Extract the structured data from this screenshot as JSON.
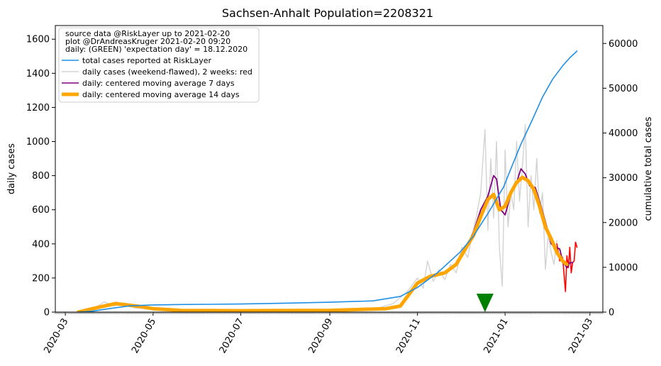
{
  "chart_data": {
    "type": "line",
    "title": "Sachsen-Anhalt Population=2208321",
    "ylabel_left": "daily cases",
    "ylabel_right": "cumulative total cases",
    "ylim_left": [
      0,
      1680
    ],
    "ylim_right": [
      0,
      64000
    ],
    "yticks_left": [
      0,
      200,
      400,
      600,
      800,
      1000,
      1200,
      1400,
      1600
    ],
    "yticks_right": [
      0,
      10000,
      20000,
      30000,
      40000,
      50000,
      60000
    ],
    "xlim": [
      "2020-02-23",
      "2021-03-10"
    ],
    "xtick_labels": [
      "2020-03",
      "2020-05",
      "2020-07",
      "2020-09",
      "2020-11",
      "2021-01",
      "2021-03"
    ],
    "xtick_dates": [
      "2020-03-01",
      "2020-05-01",
      "2020-07-01",
      "2020-09-01",
      "2020-11-01",
      "2021-01-01",
      "2021-03-01"
    ],
    "legend": {
      "placement": "upper-left",
      "header_lines": [
        "source data @RiskLayer up to 2021-02-20",
        "plot @DrAndreasKruger 2021-02-20 09:20",
        "daily: (GREEN) 'expectation day' = 18.12.2020"
      ],
      "entries": [
        "total cases reported at RiskLayer",
        "daily cases (weekend-flawed), 2 weeks: red",
        "daily: centered moving average 7 days",
        "daily: centered moving average 14 days"
      ]
    },
    "colors": {
      "total": "#1f8fe6",
      "daily": "#d3d3d3",
      "daily_recent": "#ff0000",
      "ma7": "#800080",
      "ma14": "#ffa500",
      "marker": "#008000",
      "ylabel_left": "#800080",
      "ylabel_right": "#1f8fe6"
    },
    "marker": {
      "date": "2020-12-18",
      "value": 50
    },
    "series": [
      {
        "name": "total cases reported at RiskLayer",
        "axis": "right",
        "x": [
          "2020-03-10",
          "2020-03-20",
          "2020-04-01",
          "2020-04-15",
          "2020-05-01",
          "2020-05-20",
          "2020-06-10",
          "2020-07-01",
          "2020-08-01",
          "2020-09-01",
          "2020-10-01",
          "2020-10-20",
          "2020-11-01",
          "2020-11-15",
          "2020-12-01",
          "2020-12-10",
          "2020-12-20",
          "2020-12-31",
          "2021-01-05",
          "2021-01-12",
          "2021-01-20",
          "2021-01-27",
          "2021-02-03",
          "2021-02-10",
          "2021-02-15",
          "2021-02-20"
        ],
        "y": [
          0,
          200,
          800,
          1400,
          1600,
          1700,
          1750,
          1800,
          2000,
          2200,
          2500,
          3500,
          5500,
          8800,
          13500,
          17000,
          22000,
          28000,
          32000,
          37500,
          43000,
          48000,
          52000,
          55000,
          56800,
          58300
        ]
      },
      {
        "name": "daily cases (weekend-flawed), 2 weeks: red",
        "axis": "left",
        "x": [
          "2020-03-10",
          "2020-03-20",
          "2020-03-28",
          "2020-04-04",
          "2020-04-10",
          "2020-04-18",
          "2020-04-28",
          "2020-05-10",
          "2020-06-01",
          "2020-06-20",
          "2020-07-01",
          "2020-08-01",
          "2020-09-01",
          "2020-09-20",
          "2020-10-05",
          "2020-10-15",
          "2020-10-25",
          "2020-11-01",
          "2020-11-05",
          "2020-11-08",
          "2020-11-12",
          "2020-11-16",
          "2020-11-20",
          "2020-11-24",
          "2020-11-28",
          "2020-12-02",
          "2020-12-06",
          "2020-12-09",
          "2020-12-12",
          "2020-12-15",
          "2020-12-18",
          "2020-12-20",
          "2020-12-22",
          "2020-12-24",
          "2020-12-26",
          "2020-12-28",
          "2020-12-30",
          "2021-01-01",
          "2021-01-03",
          "2021-01-05",
          "2021-01-07",
          "2021-01-09",
          "2021-01-11",
          "2021-01-13",
          "2021-01-15",
          "2021-01-17",
          "2021-01-19",
          "2021-01-21",
          "2021-01-23",
          "2021-01-25",
          "2021-01-27",
          "2021-01-29",
          "2021-01-31",
          "2021-02-02",
          "2021-02-04",
          "2021-02-06"
        ],
        "y": [
          0,
          15,
          60,
          35,
          50,
          25,
          20,
          10,
          5,
          8,
          10,
          12,
          10,
          20,
          25,
          50,
          120,
          200,
          140,
          300,
          180,
          250,
          190,
          280,
          230,
          380,
          320,
          450,
          560,
          700,
          1070,
          480,
          900,
          550,
          1000,
          380,
          150,
          950,
          500,
          700,
          600,
          1000,
          650,
          850,
          1100,
          500,
          800,
          600,
          900,
          580,
          700,
          250,
          450,
          350,
          280,
          420
        ]
      },
      {
        "name": "daily cases last 2 weeks",
        "axis": "left",
        "x": [
          "2021-02-06",
          "2021-02-08",
          "2021-02-10",
          "2021-02-12",
          "2021-02-13",
          "2021-02-14",
          "2021-02-15",
          "2021-02-16",
          "2021-02-17",
          "2021-02-18",
          "2021-02-19",
          "2021-02-20"
        ],
        "y": [
          400,
          300,
          320,
          120,
          330,
          260,
          380,
          230,
          290,
          300,
          410,
          380
        ]
      },
      {
        "name": "daily: centered moving average 7 days",
        "axis": "left",
        "x": [
          "2020-03-10",
          "2020-03-25",
          "2020-04-05",
          "2020-04-20",
          "2020-05-01",
          "2020-05-20",
          "2020-07-01",
          "2020-09-01",
          "2020-10-10",
          "2020-10-20",
          "2020-11-01",
          "2020-11-10",
          "2020-11-20",
          "2020-11-28",
          "2020-12-05",
          "2020-12-10",
          "2020-12-15",
          "2020-12-20",
          "2020-12-24",
          "2020-12-26",
          "2020-12-29",
          "2021-01-01",
          "2021-01-05",
          "2021-01-09",
          "2021-01-12",
          "2021-01-15",
          "2021-01-18",
          "2021-01-22",
          "2021-01-26",
          "2021-01-30",
          "2021-02-02",
          "2021-02-05",
          "2021-02-08",
          "2021-02-10",
          "2021-02-13",
          "2021-02-15",
          "2021-02-17"
        ],
        "y": [
          0,
          30,
          50,
          35,
          20,
          10,
          8,
          10,
          20,
          35,
          170,
          210,
          230,
          280,
          380,
          470,
          600,
          680,
          800,
          780,
          600,
          570,
          690,
          760,
          840,
          810,
          740,
          730,
          620,
          500,
          400,
          380,
          370,
          300,
          260,
          290,
          290
        ]
      },
      {
        "name": "daily: centered moving average 14 days",
        "axis": "left",
        "x": [
          "2020-03-10",
          "2020-03-25",
          "2020-04-05",
          "2020-04-20",
          "2020-05-01",
          "2020-05-20",
          "2020-07-01",
          "2020-09-01",
          "2020-10-10",
          "2020-10-20",
          "2020-11-01",
          "2020-11-10",
          "2020-11-20",
          "2020-11-28",
          "2020-12-05",
          "2020-12-10",
          "2020-12-15",
          "2020-12-20",
          "2020-12-24",
          "2020-12-28",
          "2021-01-01",
          "2021-01-05",
          "2021-01-09",
          "2021-01-13",
          "2021-01-17",
          "2021-01-21",
          "2021-01-25",
          "2021-01-29",
          "2021-02-02",
          "2021-02-06",
          "2021-02-10",
          "2021-02-13"
        ],
        "y": [
          0,
          30,
          50,
          35,
          20,
          10,
          8,
          10,
          20,
          35,
          170,
          210,
          230,
          280,
          380,
          450,
          560,
          660,
          690,
          600,
          620,
          700,
          760,
          790,
          770,
          720,
          620,
          500,
          430,
          350,
          300,
          280
        ]
      }
    ]
  }
}
